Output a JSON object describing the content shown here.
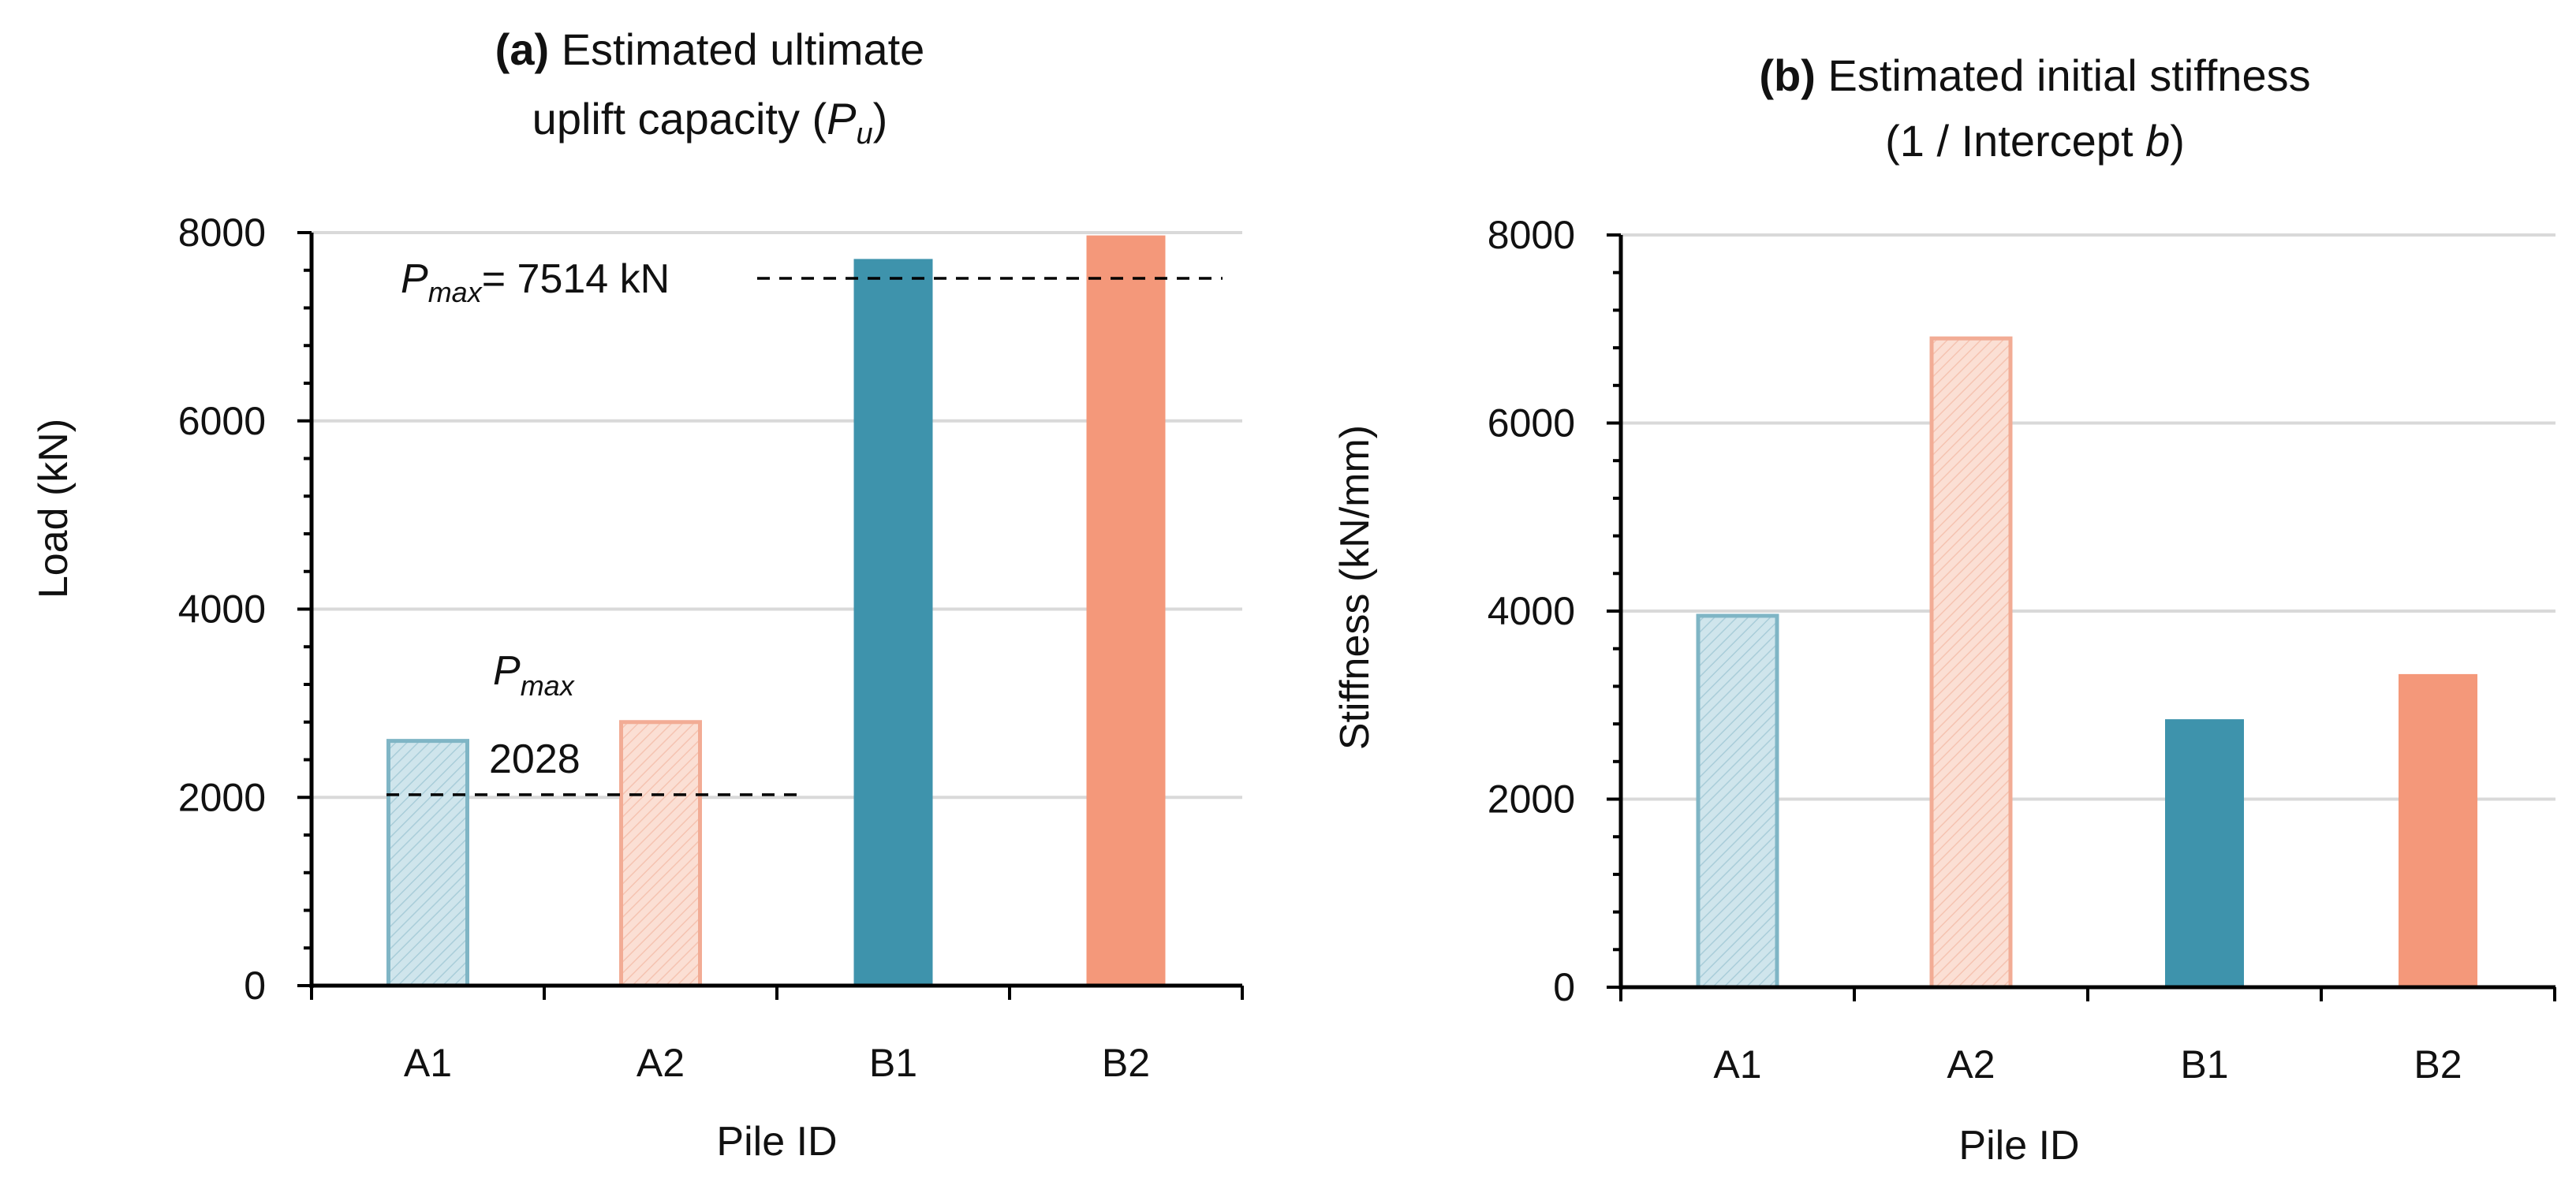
{
  "chart_data": [
    {
      "type": "bar",
      "panel": "a",
      "title_prefix": "(a)",
      "title_line1": "Estimated ultimate",
      "title_line2_main": "uplift capacity (",
      "title_line2_var": "P",
      "title_line2_sub": "u",
      "title_line2_end": ")",
      "xlabel": "Pile ID",
      "ylabel": "Load (kN)",
      "ylim": [
        0,
        8000
      ],
      "yticks": [
        0,
        2000,
        4000,
        6000,
        8000
      ],
      "ytick_labels": [
        "0",
        "2000",
        "4000",
        "6000",
        "8000"
      ],
      "categories": [
        "A1",
        "A2",
        "B1",
        "B2"
      ],
      "values": [
        2600,
        2800,
        7720,
        7970
      ],
      "reference_lines": [
        {
          "value": 7514,
          "var": "P",
          "sub": "max",
          "text": "= 7514 kN",
          "span": "B"
        },
        {
          "value": 2028,
          "var": "P",
          "sub": "max",
          "text": "2028",
          "span": "A"
        }
      ]
    },
    {
      "type": "bar",
      "panel": "b",
      "title_prefix": "(b)",
      "title_line1": "Estimated initial stiffness",
      "title_line2_main": "(1 / Intercept ",
      "title_line2_var": "b",
      "title_line2_end": ")",
      "xlabel": "Pile ID",
      "ylabel": "Stiffness (kN/mm)",
      "ylim": [
        0,
        8000
      ],
      "yticks": [
        0,
        2000,
        4000,
        6000,
        8000
      ],
      "ytick_labels": [
        "0",
        "2000",
        "4000",
        "6000",
        "8000"
      ],
      "categories": [
        "A1",
        "A2",
        "B1",
        "B2"
      ],
      "values": [
        3950,
        6900,
        2850,
        3330
      ]
    }
  ],
  "styles": {
    "A1": {
      "fill": "#c9e2ea",
      "stroke": "#7fb5c5",
      "hatched": true
    },
    "A2": {
      "fill": "#f9d8cc",
      "stroke": "#f2ac95",
      "hatched": true
    },
    "B1": {
      "fill": "#3e93ac",
      "stroke": "#3e93ac",
      "hatched": false
    },
    "B2": {
      "fill": "#f4987a",
      "stroke": "#f4987a",
      "hatched": false
    }
  }
}
